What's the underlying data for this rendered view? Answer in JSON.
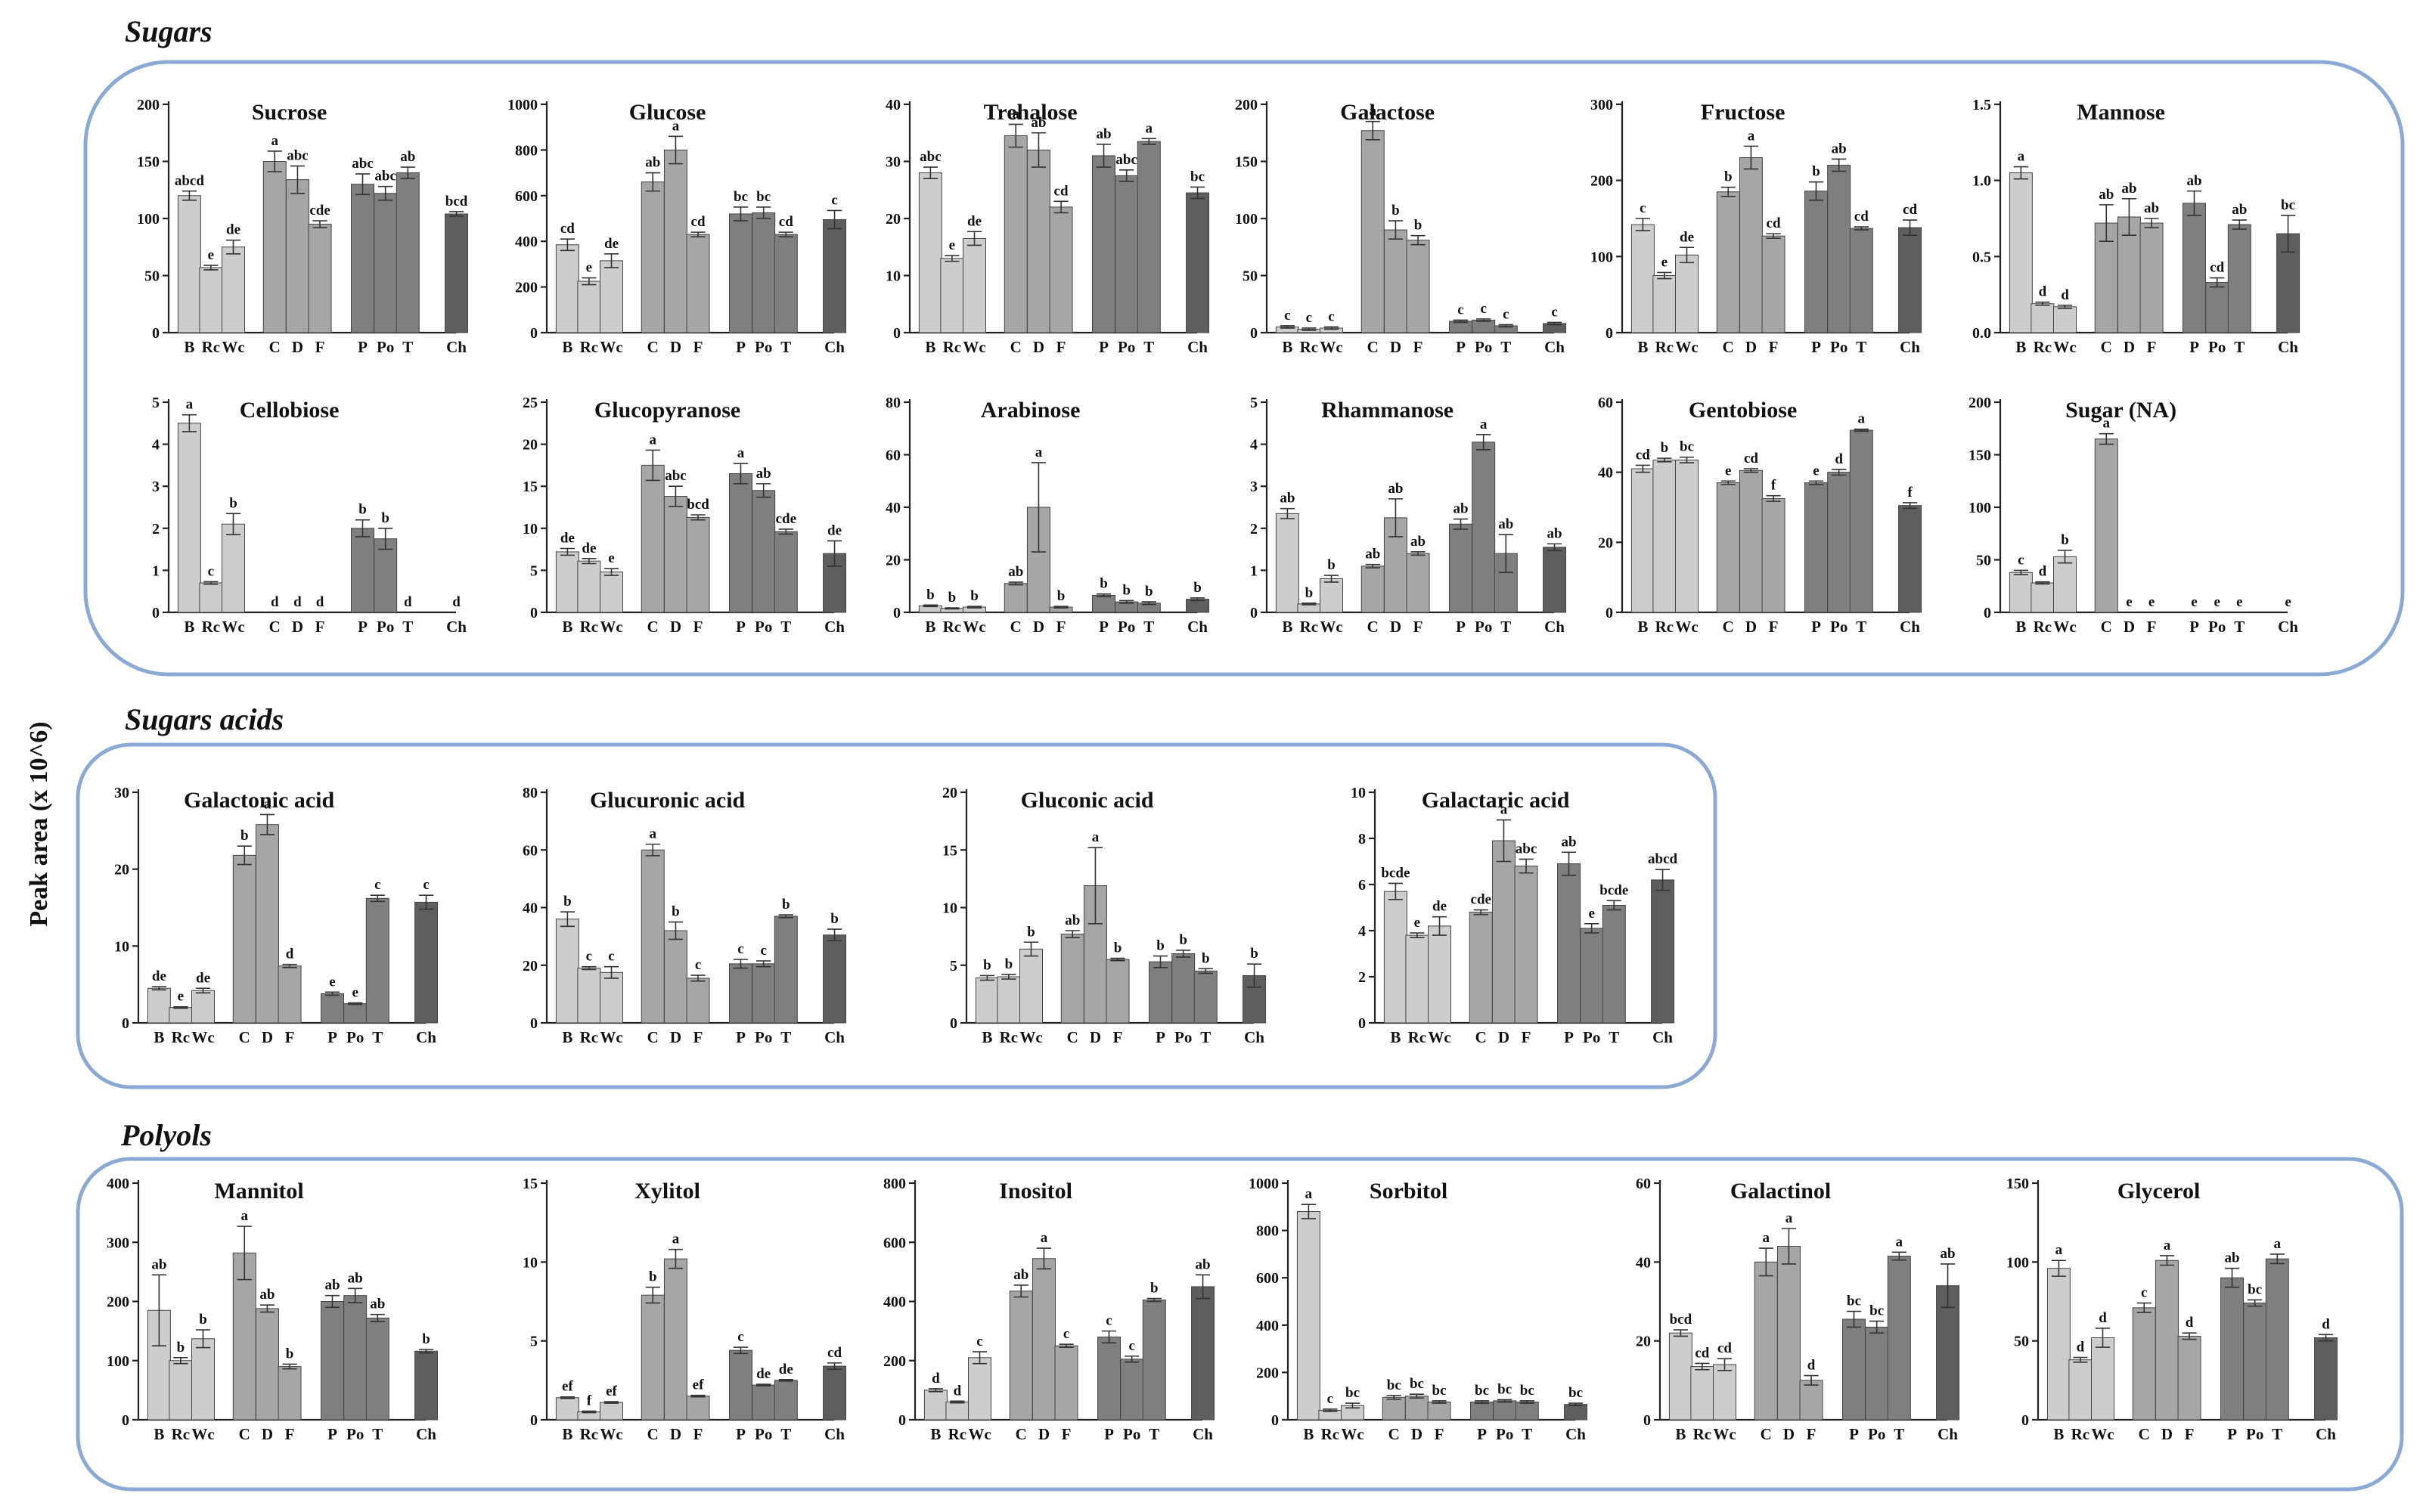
{
  "y_axis_label": "Peak area (x 10^6)",
  "colors": {
    "frame": "#8aa9d4",
    "B": "#cdcdcd",
    "Rc": "#cdcdcd",
    "Wc": "#cdcdcd",
    "C": "#a6a6a6",
    "D": "#a6a6a6",
    "F": "#a6a6a6",
    "P": "#7f7f7f",
    "Po": "#7f7f7f",
    "T": "#7f7f7f",
    "Ch": "#5e5e5e"
  },
  "groups": [
    {
      "name": "Sugars"
    },
    {
      "name": "Sugars acids"
    },
    {
      "name": "Polyols"
    }
  ],
  "chart_data": [
    {
      "type": "bar",
      "group": "Sugars",
      "title": "Sucrose",
      "categories": [
        "B",
        "Rc",
        "Wc",
        "C",
        "D",
        "F",
        "P",
        "Po",
        "T",
        "Ch"
      ],
      "values": [
        120,
        57,
        75,
        150,
        134,
        95,
        130,
        122,
        140,
        104
      ],
      "errors": [
        4,
        2,
        6,
        9,
        12,
        3,
        9,
        6,
        5,
        2
      ],
      "labels": [
        "abcd",
        "e",
        "de",
        "a",
        "abc",
        "cde",
        "abc",
        "abc",
        "ab",
        "bcd"
      ],
      "ylim": [
        0,
        200
      ],
      "yticks": [
        0,
        50,
        100,
        150,
        200
      ]
    },
    {
      "type": "bar",
      "group": "Sugars",
      "title": "Glucose",
      "categories": [
        "B",
        "Rc",
        "Wc",
        "C",
        "D",
        "F",
        "P",
        "Po",
        "T",
        "Ch"
      ],
      "values": [
        385,
        225,
        315,
        660,
        800,
        430,
        520,
        525,
        430,
        495
      ],
      "errors": [
        25,
        15,
        30,
        40,
        60,
        10,
        30,
        25,
        10,
        40
      ],
      "labels": [
        "cd",
        "e",
        "de",
        "ab",
        "a",
        "cd",
        "bc",
        "bc",
        "cd",
        "c"
      ],
      "ylim": [
        0,
        1000
      ],
      "yticks": [
        0,
        200,
        400,
        600,
        800,
        1000
      ]
    },
    {
      "type": "bar",
      "group": "Sugars",
      "title": "Trehalose",
      "categories": [
        "B",
        "Rc",
        "Wc",
        "C",
        "D",
        "F",
        "P",
        "Po",
        "T",
        "Ch"
      ],
      "values": [
        28,
        13,
        16.5,
        34.5,
        32,
        22,
        31,
        27.5,
        33.5,
        24.5
      ],
      "errors": [
        1,
        0.5,
        1.2,
        2,
        3,
        1,
        2,
        1,
        0.5,
        1
      ],
      "labels": [
        "abc",
        "e",
        "de",
        "a",
        "ab",
        "cd",
        "ab",
        "abc",
        "a",
        "bc"
      ],
      "ylim": [
        0,
        40
      ],
      "yticks": [
        0,
        10,
        20,
        30,
        40
      ]
    },
    {
      "type": "bar",
      "group": "Sugars",
      "title": "Galactose",
      "categories": [
        "B",
        "Rc",
        "Wc",
        "C",
        "D",
        "F",
        "P",
        "Po",
        "T",
        "Ch"
      ],
      "values": [
        5,
        3,
        4,
        177,
        90,
        81,
        10,
        11,
        6,
        8
      ],
      "errors": [
        1,
        1,
        1,
        8,
        8,
        4,
        1,
        1,
        1,
        1
      ],
      "labels": [
        "c",
        "c",
        "c",
        "a",
        "b",
        "b",
        "c",
        "c",
        "c",
        "c"
      ],
      "ylim": [
        0,
        200
      ],
      "yticks": [
        0,
        50,
        100,
        150,
        200
      ]
    },
    {
      "type": "bar",
      "group": "Sugars",
      "title": "Fructose",
      "categories": [
        "B",
        "Rc",
        "Wc",
        "C",
        "D",
        "F",
        "P",
        "Po",
        "T",
        "Ch"
      ],
      "values": [
        142,
        75,
        102,
        185,
        230,
        127,
        186,
        220,
        137,
        138
      ],
      "errors": [
        8,
        4,
        10,
        6,
        15,
        3,
        12,
        8,
        2,
        10
      ],
      "labels": [
        "c",
        "e",
        "de",
        "b",
        "a",
        "cd",
        "b",
        "ab",
        "cd",
        "cd"
      ],
      "ylim": [
        0,
        300
      ],
      "yticks": [
        0,
        100,
        200,
        300
      ]
    },
    {
      "type": "bar",
      "group": "Sugars",
      "title": "Mannose",
      "categories": [
        "B",
        "Rc",
        "Wc",
        "C",
        "D",
        "F",
        "P",
        "Po",
        "T",
        "Ch"
      ],
      "values": [
        1.05,
        0.19,
        0.17,
        0.72,
        0.76,
        0.72,
        0.85,
        0.33,
        0.71,
        0.65
      ],
      "errors": [
        0.04,
        0.01,
        0.01,
        0.12,
        0.12,
        0.03,
        0.08,
        0.03,
        0.03,
        0.12
      ],
      "labels": [
        "a",
        "d",
        "d",
        "ab",
        "ab",
        "ab",
        "ab",
        "cd",
        "ab",
        "bc"
      ],
      "ylim": [
        0,
        1.5
      ],
      "yticks": [
        0,
        0.5,
        1.0,
        1.5
      ],
      "ytick_labels": [
        "0.0",
        "0.5",
        "1.0",
        "1.5"
      ]
    },
    {
      "type": "bar",
      "group": "Sugars",
      "title": "Cellobiose",
      "categories": [
        "B",
        "Rc",
        "Wc",
        "C",
        "D",
        "F",
        "P",
        "Po",
        "T",
        "Ch"
      ],
      "values": [
        4.5,
        0.7,
        2.1,
        0,
        0,
        0,
        2.0,
        1.75,
        0,
        0
      ],
      "errors": [
        0.2,
        0.03,
        0.25,
        0,
        0,
        0,
        0.2,
        0.25,
        0,
        0
      ],
      "labels": [
        "a",
        "c",
        "b",
        "d",
        "d",
        "d",
        "b",
        "b",
        "d",
        "d"
      ],
      "ylim": [
        0,
        5
      ],
      "yticks": [
        0,
        1,
        2,
        3,
        4,
        5
      ]
    },
    {
      "type": "bar",
      "group": "Sugars",
      "title": "Glucopyranose",
      "categories": [
        "B",
        "Rc",
        "Wc",
        "C",
        "D",
        "F",
        "P",
        "Po",
        "T",
        "Ch"
      ],
      "values": [
        7.2,
        6.1,
        4.8,
        17.5,
        13.8,
        11.3,
        16.5,
        14.5,
        9.6,
        7.0
      ],
      "errors": [
        0.4,
        0.3,
        0.4,
        1.8,
        1.2,
        0.3,
        1.2,
        0.8,
        0.3,
        1.5
      ],
      "labels": [
        "de",
        "de",
        "e",
        "a",
        "abc",
        "bcd",
        "a",
        "ab",
        "cde",
        "de"
      ],
      "ylim": [
        0,
        25
      ],
      "yticks": [
        0,
        5,
        10,
        15,
        20,
        25
      ]
    },
    {
      "type": "bar",
      "group": "Sugars",
      "title": "Arabinose",
      "categories": [
        "B",
        "Rc",
        "Wc",
        "C",
        "D",
        "F",
        "P",
        "Po",
        "T",
        "Ch"
      ],
      "values": [
        2.5,
        1.5,
        2,
        11,
        40,
        2,
        6.5,
        4,
        3.5,
        5
      ],
      "errors": [
        0.3,
        0.2,
        0.3,
        0.5,
        17,
        0.3,
        0.5,
        0.5,
        0.5,
        0.5
      ],
      "labels": [
        "b",
        "b",
        "b",
        "ab",
        "a",
        "b",
        "b",
        "b",
        "b",
        "b"
      ],
      "ylim": [
        0,
        80
      ],
      "yticks": [
        0,
        20,
        40,
        60,
        80
      ]
    },
    {
      "type": "bar",
      "group": "Sugars",
      "title": "Rhammanose",
      "categories": [
        "B",
        "Rc",
        "Wc",
        "C",
        "D",
        "F",
        "P",
        "Po",
        "T",
        "Ch"
      ],
      "values": [
        2.35,
        0.2,
        0.8,
        1.1,
        2.25,
        1.4,
        2.1,
        4.05,
        1.4,
        1.55
      ],
      "errors": [
        0.12,
        0.02,
        0.08,
        0.04,
        0.45,
        0.04,
        0.12,
        0.18,
        0.45,
        0.08
      ],
      "labels": [
        "ab",
        "b",
        "b",
        "ab",
        "ab",
        "ab",
        "ab",
        "a",
        "ab",
        "ab"
      ],
      "ylim": [
        0,
        5
      ],
      "yticks": [
        0,
        1,
        2,
        3,
        4,
        5
      ]
    },
    {
      "type": "bar",
      "group": "Sugars",
      "title": "Gentobiose",
      "categories": [
        "B",
        "Rc",
        "Wc",
        "C",
        "D",
        "F",
        "P",
        "Po",
        "T",
        "Ch"
      ],
      "values": [
        41,
        43.5,
        43.5,
        37,
        40.5,
        32.5,
        37,
        40,
        52,
        30.5
      ],
      "errors": [
        1,
        0.5,
        0.8,
        0.5,
        0.5,
        0.8,
        0.5,
        0.8,
        0.3,
        0.8
      ],
      "labels": [
        "cd",
        "b",
        "bc",
        "e",
        "cd",
        "f",
        "e",
        "d",
        "a",
        "f"
      ],
      "ylim": [
        0,
        60
      ],
      "yticks": [
        0,
        20,
        40,
        60
      ]
    },
    {
      "type": "bar",
      "group": "Sugars",
      "title": "Sugar (NA)",
      "categories": [
        "B",
        "Rc",
        "Wc",
        "C",
        "D",
        "F",
        "P",
        "Po",
        "T",
        "Ch"
      ],
      "values": [
        38,
        28,
        53,
        165,
        0,
        0,
        0,
        0,
        0,
        0
      ],
      "errors": [
        2,
        1,
        6,
        5,
        0,
        0,
        0,
        0,
        0,
        0
      ],
      "labels": [
        "c",
        "d",
        "b",
        "a",
        "e",
        "e",
        "e",
        "e",
        "e",
        "e"
      ],
      "ylim": [
        0,
        200
      ],
      "yticks": [
        0,
        50,
        100,
        150,
        200
      ]
    },
    {
      "type": "bar",
      "group": "Sugars acids",
      "title": "Galactonic acid",
      "categories": [
        "B",
        "Rc",
        "Wc",
        "C",
        "D",
        "F",
        "P",
        "Po",
        "T",
        "Ch"
      ],
      "values": [
        4.5,
        2,
        4.2,
        21.8,
        25.8,
        7.4,
        3.8,
        2.5,
        16.2,
        15.7
      ],
      "errors": [
        0.2,
        0.1,
        0.3,
        1.2,
        1.3,
        0.2,
        0.2,
        0.1,
        0.4,
        0.9
      ],
      "labels": [
        "de",
        "e",
        "de",
        "b",
        "a",
        "d",
        "e",
        "e",
        "c",
        "c"
      ],
      "ylim": [
        0,
        30
      ],
      "yticks": [
        0,
        10,
        20,
        30
      ]
    },
    {
      "type": "bar",
      "group": "Sugars acids",
      "title": "Glucuronic acid",
      "categories": [
        "B",
        "Rc",
        "Wc",
        "C",
        "D",
        "F",
        "P",
        "Po",
        "T",
        "Ch"
      ],
      "values": [
        36,
        19,
        17.5,
        60,
        32,
        15.5,
        20.5,
        20.5,
        37,
        30.5
      ],
      "errors": [
        2.5,
        0.5,
        2,
        2,
        3,
        1,
        1.5,
        1,
        0.5,
        2
      ],
      "labels": [
        "b",
        "c",
        "c",
        "a",
        "b",
        "c",
        "c",
        "c",
        "b",
        "b"
      ],
      "ylim": [
        0,
        80
      ],
      "yticks": [
        0,
        20,
        40,
        60,
        80
      ]
    },
    {
      "type": "bar",
      "group": "Sugars acids",
      "title": "Gluconic acid",
      "categories": [
        "B",
        "Rc",
        "Wc",
        "C",
        "D",
        "F",
        "P",
        "Po",
        "T",
        "Ch"
      ],
      "values": [
        3.9,
        4,
        6.4,
        7.7,
        11.9,
        5.5,
        5.3,
        6,
        4.5,
        4.1
      ],
      "errors": [
        0.2,
        0.2,
        0.6,
        0.3,
        3.3,
        0.1,
        0.5,
        0.3,
        0.2,
        1
      ],
      "labels": [
        "b",
        "b",
        "b",
        "ab",
        "a",
        "b",
        "b",
        "b",
        "b",
        "b"
      ],
      "ylim": [
        0,
        20
      ],
      "yticks": [
        0,
        5,
        10,
        15,
        20
      ]
    },
    {
      "type": "bar",
      "group": "Sugars acids",
      "title": "Galactaric acid",
      "categories": [
        "B",
        "Rc",
        "Wc",
        "C",
        "D",
        "F",
        "P",
        "Po",
        "T",
        "Ch"
      ],
      "values": [
        5.7,
        3.8,
        4.2,
        4.8,
        7.9,
        6.8,
        6.9,
        4.1,
        5.1,
        6.2
      ],
      "errors": [
        0.35,
        0.1,
        0.4,
        0.1,
        0.9,
        0.3,
        0.5,
        0.2,
        0.2,
        0.45
      ],
      "labels": [
        "bcde",
        "e",
        "de",
        "cde",
        "a",
        "abc",
        "ab",
        "e",
        "bcde",
        "abcd"
      ],
      "ylim": [
        0,
        10
      ],
      "yticks": [
        0,
        2,
        4,
        6,
        8,
        10
      ]
    },
    {
      "type": "bar",
      "group": "Polyols",
      "title": "Mannitol",
      "categories": [
        "B",
        "Rc",
        "Wc",
        "C",
        "D",
        "F",
        "P",
        "Po",
        "T",
        "Ch"
      ],
      "values": [
        185,
        100,
        137,
        282,
        188,
        90,
        200,
        210,
        172,
        116
      ],
      "errors": [
        60,
        5,
        15,
        45,
        6,
        4,
        10,
        12,
        6,
        3
      ],
      "labels": [
        "ab",
        "b",
        "b",
        "a",
        "ab",
        "b",
        "ab",
        "ab",
        "ab",
        "b"
      ],
      "ylim": [
        0,
        400
      ],
      "yticks": [
        0,
        100,
        200,
        300,
        400
      ]
    },
    {
      "type": "bar",
      "group": "Polyols",
      "title": "Xylitol",
      "categories": [
        "B",
        "Rc",
        "Wc",
        "C",
        "D",
        "F",
        "P",
        "Po",
        "T",
        "Ch"
      ],
      "values": [
        1.4,
        0.5,
        1.1,
        7.9,
        10.2,
        1.5,
        4.4,
        2.2,
        2.5,
        3.4
      ],
      "errors": [
        0.05,
        0.05,
        0.05,
        0.5,
        0.6,
        0.05,
        0.2,
        0.05,
        0.05,
        0.2
      ],
      "labels": [
        "ef",
        "f",
        "ef",
        "b",
        "a",
        "ef",
        "c",
        "de",
        "de",
        "cd"
      ],
      "ylim": [
        0,
        15
      ],
      "yticks": [
        0,
        5,
        10,
        15
      ]
    },
    {
      "type": "bar",
      "group": "Polyols",
      "title": "Inositol",
      "categories": [
        "B",
        "Rc",
        "Wc",
        "C",
        "D",
        "F",
        "P",
        "Po",
        "T",
        "Ch"
      ],
      "values": [
        100,
        60,
        210,
        435,
        545,
        250,
        280,
        205,
        405,
        450
      ],
      "errors": [
        5,
        3,
        20,
        20,
        35,
        5,
        20,
        10,
        5,
        40
      ],
      "labels": [
        "d",
        "d",
        "c",
        "ab",
        "a",
        "c",
        "c",
        "c",
        "b",
        "ab"
      ],
      "ylim": [
        0,
        800
      ],
      "yticks": [
        0,
        200,
        400,
        600,
        800
      ]
    },
    {
      "type": "bar",
      "group": "Polyols",
      "title": "Sorbitol",
      "categories": [
        "B",
        "Rc",
        "Wc",
        "C",
        "D",
        "F",
        "P",
        "Po",
        "T",
        "Ch"
      ],
      "values": [
        880,
        40,
        60,
        95,
        100,
        75,
        75,
        80,
        75,
        65
      ],
      "errors": [
        30,
        5,
        10,
        8,
        8,
        5,
        5,
        5,
        5,
        5
      ],
      "labels": [
        "a",
        "c",
        "bc",
        "bc",
        "bc",
        "bc",
        "bc",
        "bc",
        "bc",
        "bc"
      ],
      "ylim": [
        0,
        1000
      ],
      "yticks": [
        0,
        200,
        400,
        600,
        800,
        1000
      ]
    },
    {
      "type": "bar",
      "group": "Polyols",
      "title": "Galactinol",
      "categories": [
        "B",
        "Rc",
        "Wc",
        "C",
        "D",
        "F",
        "P",
        "Po",
        "T",
        "Ch"
      ],
      "values": [
        22,
        13.5,
        14,
        40,
        44,
        10,
        25.5,
        23.5,
        41.5,
        34
      ],
      "errors": [
        0.8,
        0.8,
        1.5,
        3.5,
        4.5,
        1.2,
        2,
        1.5,
        1,
        5.5
      ],
      "labels": [
        "bcd",
        "cd",
        "cd",
        "a",
        "a",
        "d",
        "bc",
        "bc",
        "a",
        "ab"
      ],
      "ylim": [
        0,
        60
      ],
      "yticks": [
        0,
        20,
        40,
        60
      ]
    },
    {
      "type": "bar",
      "group": "Polyols",
      "title": "Glycerol",
      "categories": [
        "B",
        "Rc",
        "Wc",
        "C",
        "D",
        "F",
        "P",
        "Po",
        "T",
        "Ch"
      ],
      "values": [
        96,
        38,
        52,
        71,
        101,
        53,
        90,
        74,
        102,
        52
      ],
      "errors": [
        5,
        1.5,
        6,
        3,
        3,
        2,
        6,
        2,
        3,
        2
      ],
      "labels": [
        "a",
        "d",
        "d",
        "c",
        "a",
        "d",
        "ab",
        "bc",
        "a",
        "d"
      ],
      "ylim": [
        0,
        150
      ],
      "yticks": [
        0,
        50,
        100,
        150
      ]
    }
  ]
}
